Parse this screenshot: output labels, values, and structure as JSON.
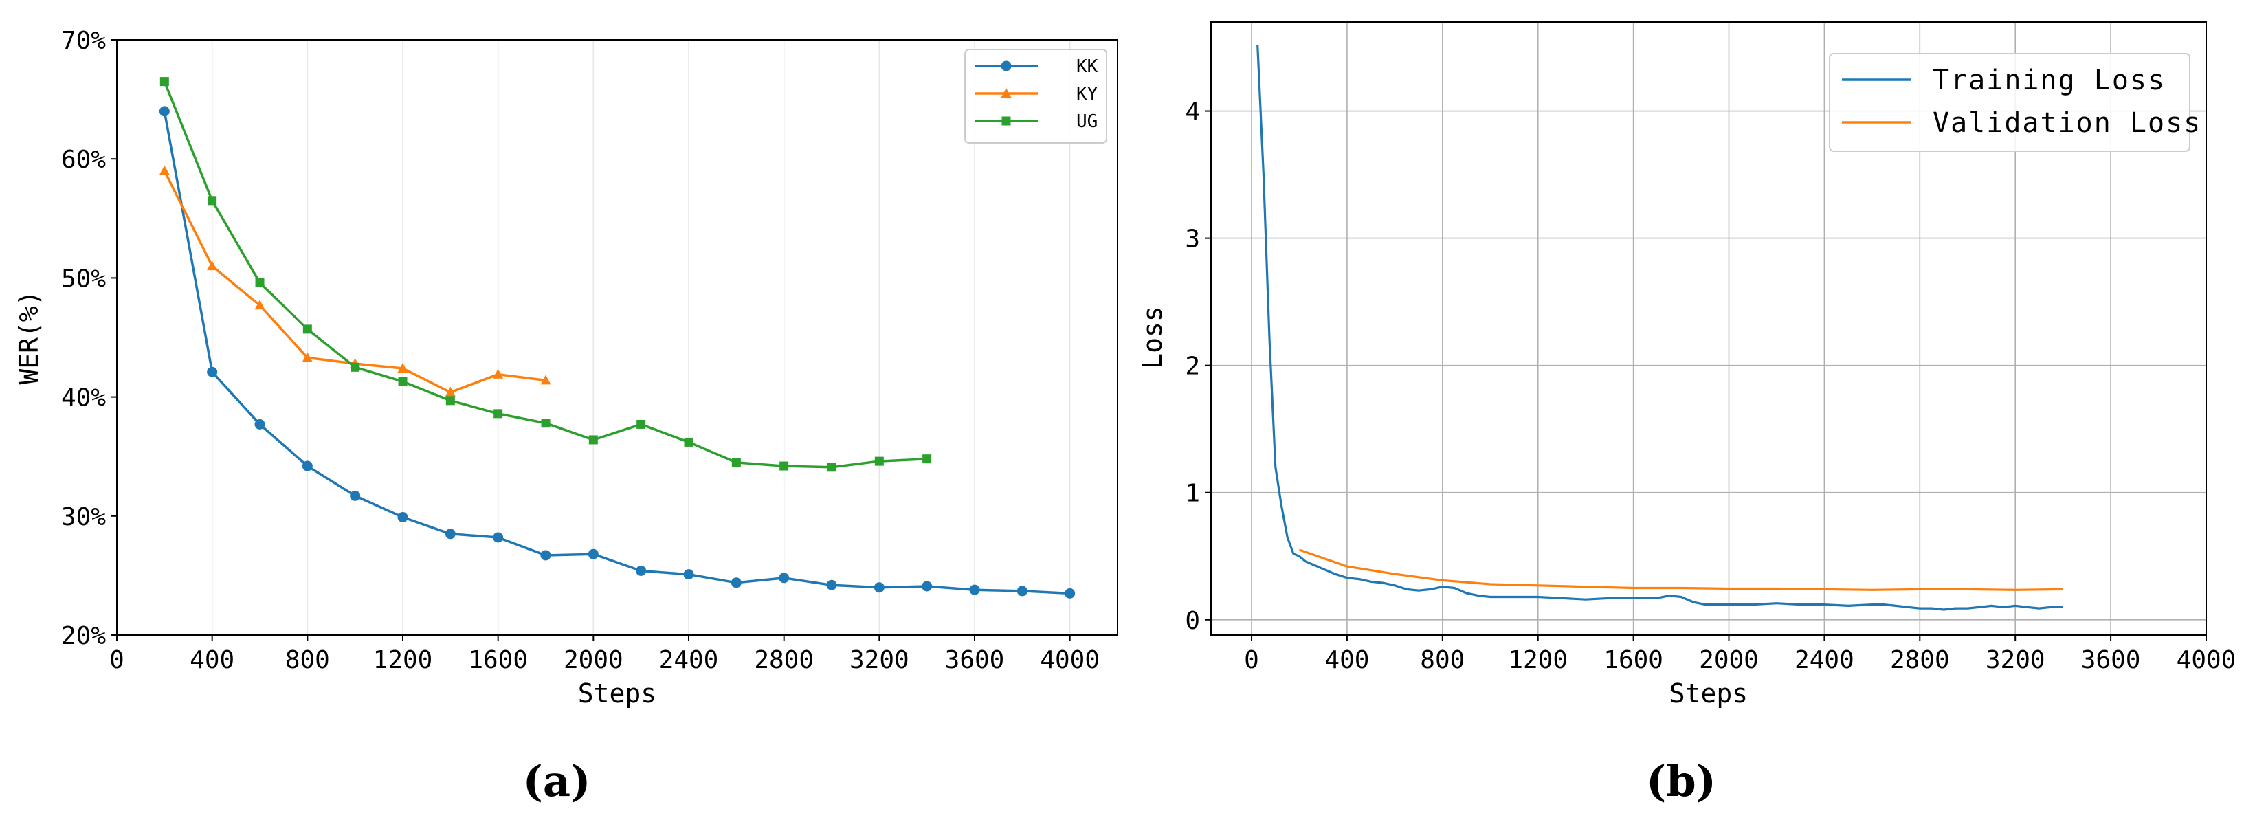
{
  "panel_labels": {
    "a": "(a)",
    "b": "(b)"
  },
  "chart_data": [
    {
      "type": "line",
      "panel": "a",
      "xlabel": "Steps",
      "ylabel": "WER(%)",
      "xlim": [
        0,
        4200
      ],
      "ylim": [
        20,
        70
      ],
      "xticks": [
        0,
        400,
        800,
        1200,
        1600,
        2000,
        2400,
        2800,
        3200,
        3600,
        4000
      ],
      "xtick_labels": [
        "0",
        "400",
        "800",
        "1200",
        "1600",
        "2000",
        "2400",
        "2800",
        "3200",
        "3600",
        "4000"
      ],
      "yticks": [
        20,
        30,
        40,
        50,
        60,
        70
      ],
      "ytick_labels": [
        "20%",
        "30%",
        "40%",
        "50%",
        "60%",
        "70%"
      ],
      "grid": "vertical",
      "legend_position": "top-right",
      "series": [
        {
          "name": "KK",
          "color": "#1f77b4",
          "marker": "circle",
          "x": [
            200,
            400,
            600,
            800,
            1000,
            1200,
            1400,
            1600,
            1800,
            2000,
            2200,
            2400,
            2600,
            2800,
            3000,
            3200,
            3400,
            3600,
            3800,
            4000
          ],
          "y": [
            64.0,
            42.1,
            37.7,
            34.2,
            31.7,
            29.9,
            28.5,
            28.2,
            26.7,
            26.8,
            25.4,
            25.1,
            24.4,
            24.8,
            24.2,
            24.0,
            24.1,
            23.8,
            23.7,
            23.5
          ]
        },
        {
          "name": "KY",
          "color": "#ff7f0e",
          "marker": "triangle",
          "x": [
            200,
            400,
            600,
            800,
            1000,
            1200,
            1400,
            1600,
            1800
          ],
          "y": [
            59.0,
            51.0,
            47.7,
            43.3,
            42.8,
            42.4,
            40.4,
            41.9,
            41.4
          ]
        },
        {
          "name": "UG",
          "color": "#2ca02c",
          "marker": "square",
          "x": [
            200,
            400,
            600,
            800,
            1000,
            1200,
            1400,
            1600,
            1800,
            2000,
            2200,
            2400,
            2600,
            2800,
            3000,
            3200,
            3400
          ],
          "y": [
            66.5,
            56.5,
            49.6,
            45.7,
            42.5,
            41.3,
            39.7,
            38.6,
            37.8,
            36.4,
            37.7,
            36.2,
            34.5,
            34.2,
            34.1,
            34.6,
            34.8
          ]
        }
      ]
    },
    {
      "type": "line",
      "panel": "b",
      "xlabel": "Steps",
      "ylabel": "Loss",
      "xlim": [
        -170,
        4000
      ],
      "ylim": [
        -0.12,
        4.7
      ],
      "xticks": [
        0,
        400,
        800,
        1200,
        1600,
        2000,
        2400,
        2800,
        3200,
        3600,
        4000
      ],
      "xtick_labels": [
        "0",
        "400",
        "800",
        "1200",
        "1600",
        "2000",
        "2400",
        "2800",
        "3200",
        "3600",
        "4000"
      ],
      "yticks": [
        0,
        1,
        2,
        3,
        4
      ],
      "ytick_labels": [
        "0",
        "1",
        "2",
        "3",
        "4"
      ],
      "grid": "both",
      "legend_position": "top-right",
      "series": [
        {
          "name": "Training Loss",
          "color": "#1f77b4",
          "x": [
            25,
            50,
            75,
            100,
            125,
            150,
            175,
            200,
            225,
            250,
            300,
            350,
            400,
            450,
            500,
            550,
            600,
            650,
            700,
            750,
            800,
            850,
            900,
            950,
            1000,
            1100,
            1200,
            1300,
            1400,
            1500,
            1600,
            1700,
            1750,
            1800,
            1850,
            1900,
            1950,
            2000,
            2100,
            2200,
            2300,
            2400,
            2500,
            2600,
            2650,
            2700,
            2750,
            2800,
            2850,
            2900,
            2950,
            3000,
            3050,
            3100,
            3150,
            3200,
            3250,
            3300,
            3350,
            3400
          ],
          "y": [
            4.52,
            3.5,
            2.2,
            1.2,
            0.9,
            0.65,
            0.52,
            0.5,
            0.46,
            0.44,
            0.4,
            0.36,
            0.33,
            0.32,
            0.3,
            0.29,
            0.27,
            0.24,
            0.23,
            0.24,
            0.26,
            0.25,
            0.21,
            0.19,
            0.18,
            0.18,
            0.18,
            0.17,
            0.16,
            0.17,
            0.17,
            0.17,
            0.19,
            0.18,
            0.14,
            0.12,
            0.12,
            0.12,
            0.12,
            0.13,
            0.12,
            0.12,
            0.11,
            0.12,
            0.12,
            0.11,
            0.1,
            0.09,
            0.09,
            0.08,
            0.09,
            0.09,
            0.1,
            0.11,
            0.1,
            0.11,
            0.1,
            0.09,
            0.1,
            0.1
          ]
        },
        {
          "name": "Validation Loss",
          "color": "#ff7f0e",
          "x": [
            200,
            400,
            600,
            800,
            1000,
            1200,
            1400,
            1600,
            1800,
            2000,
            2200,
            2400,
            2600,
            2800,
            3000,
            3200,
            3400
          ],
          "y": [
            0.55,
            0.42,
            0.36,
            0.31,
            0.28,
            0.27,
            0.26,
            0.25,
            0.25,
            0.245,
            0.245,
            0.24,
            0.235,
            0.24,
            0.24,
            0.235,
            0.24
          ]
        }
      ]
    }
  ]
}
